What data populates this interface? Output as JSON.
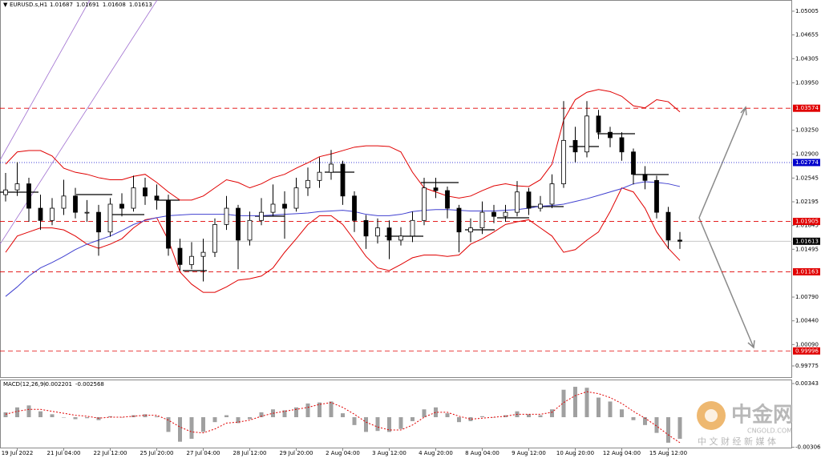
{
  "chart_data": [
    {
      "type": "candlestick",
      "symbol": "EURUSD.s,H1",
      "quote": [
        1.01687,
        1.01691,
        1.01608,
        1.01613
      ],
      "categories": [
        null,
        "19 Jul 2022",
        null,
        null,
        null,
        "21 Jul 04:00",
        null,
        null,
        null,
        "22 Jul 12:00",
        null,
        null,
        null,
        "25 Jul 20:00",
        null,
        null,
        null,
        "27 Jul 04:00",
        null,
        null,
        null,
        "28 Jul 12:00",
        null,
        null,
        null,
        "29 Jul 20:00",
        null,
        null,
        null,
        "2 Aug 04:00",
        null,
        null,
        null,
        "3 Aug 12:00",
        null,
        null,
        null,
        "4 Aug 20:00",
        null,
        null,
        null,
        "8 Aug 04:00",
        null,
        null,
        null,
        "9 Aug 12:00",
        null,
        null,
        null,
        "10 Aug 20:00",
        null,
        null,
        null,
        "12 Aug 04:00",
        null,
        null,
        null,
        "15 Aug 12:00",
        null
      ],
      "open": [
        1.023,
        1.0237,
        1.0246,
        1.021,
        1.0192,
        1.021,
        1.0228,
        1.0204,
        1.0204,
        1.0175,
        1.0216,
        1.021,
        1.024,
        1.0228,
        1.0222,
        1.0151,
        1.0127,
        1.0139,
        1.0145,
        1.0186,
        1.021,
        1.0163,
        1.0192,
        1.0204,
        1.0216,
        1.021,
        1.024,
        1.0251,
        1.0263,
        1.0275,
        1.0228,
        1.0192,
        1.0169,
        1.0181,
        1.0163,
        1.0169,
        1.0192,
        1.024,
        1.0236,
        1.021,
        1.0175,
        1.0181,
        1.0204,
        1.0198,
        1.0204,
        1.0234,
        1.021,
        1.0216,
        1.0246,
        1.031,
        1.0293,
        1.0346,
        1.0322,
        1.0314,
        1.0293,
        1.026,
        1.0251,
        1.0204,
        1.0163
      ],
      "high": [
        1.0262,
        1.0278,
        1.0255,
        1.023,
        1.0225,
        1.0252,
        1.024,
        1.0222,
        1.0215,
        1.0225,
        1.0232,
        1.0258,
        1.0255,
        1.0245,
        1.023,
        1.0165,
        1.016,
        1.0165,
        1.0195,
        1.0228,
        1.0215,
        1.0205,
        1.0225,
        1.0245,
        1.0235,
        1.0255,
        1.027,
        1.0285,
        1.0296,
        1.028,
        1.0235,
        1.02,
        1.0195,
        1.0192,
        1.0182,
        1.0205,
        1.0255,
        1.0255,
        1.0242,
        1.0215,
        1.0195,
        1.022,
        1.0215,
        1.0215,
        1.025,
        1.024,
        1.0228,
        1.026,
        1.0368,
        1.033,
        1.0368,
        1.0355,
        1.033,
        1.0322,
        1.0298,
        1.0272,
        1.0258,
        1.0212,
        1.0175
      ],
      "low": [
        1.022,
        1.0228,
        1.019,
        1.0178,
        1.0185,
        1.02,
        1.0195,
        1.019,
        1.014,
        1.0168,
        1.0198,
        1.0205,
        1.0215,
        1.0208,
        1.014,
        1.0118,
        1.012,
        1.0102,
        1.0138,
        1.0178,
        1.012,
        1.0155,
        1.0185,
        1.0198,
        1.0165,
        1.0205,
        1.0228,
        1.024,
        1.0252,
        1.0215,
        1.0175,
        1.015,
        1.0158,
        1.0135,
        1.0155,
        1.016,
        1.0185,
        1.0225,
        1.0195,
        1.0145,
        1.016,
        1.0172,
        1.0188,
        1.019,
        1.0198,
        1.02,
        1.0205,
        1.021,
        1.024,
        1.0278,
        1.0285,
        1.0312,
        1.03,
        1.028,
        1.0245,
        1.0238,
        1.0195,
        1.015,
        1.015
      ],
      "close": [
        1.0237,
        1.0246,
        1.021,
        1.0192,
        1.021,
        1.0228,
        1.0204,
        1.0204,
        1.0175,
        1.0216,
        1.021,
        1.024,
        1.0228,
        1.0222,
        1.0151,
        1.0127,
        1.0139,
        1.0145,
        1.0186,
        1.021,
        1.0163,
        1.0192,
        1.0204,
        1.0216,
        1.021,
        1.024,
        1.0251,
        1.0263,
        1.0275,
        1.0228,
        1.0192,
        1.0169,
        1.0181,
        1.0163,
        1.0169,
        1.0192,
        1.024,
        1.0236,
        1.021,
        1.0175,
        1.0181,
        1.0204,
        1.0198,
        1.0204,
        1.0234,
        1.021,
        1.0216,
        1.0246,
        1.031,
        1.0293,
        1.0346,
        1.0322,
        1.0314,
        1.0293,
        1.026,
        1.0251,
        1.0204,
        1.0163,
        1.01613
      ],
      "series": [
        {
          "color": "#e00000",
          "values": [
            1.0275,
            1.0293,
            1.0295,
            1.0295,
            1.0287,
            1.0269,
            1.0263,
            1.026,
            1.0255,
            1.0252,
            1.0252,
            1.0257,
            1.026,
            1.0248,
            1.0234,
            1.0222,
            1.0222,
            1.0228,
            1.024,
            1.0252,
            1.0248,
            1.024,
            1.0246,
            1.0255,
            1.026,
            1.0269,
            1.0277,
            1.0286,
            1.029,
            1.0295,
            1.03,
            1.0302,
            1.0302,
            1.0301,
            1.0293,
            1.0263,
            1.024,
            1.0234,
            1.0228,
            1.0225,
            1.0228,
            1.0236,
            1.0243,
            1.0246,
            1.0243,
            1.0242,
            1.0252,
            1.0275,
            1.034,
            1.037,
            1.0381,
            1.0385,
            1.0382,
            1.0375,
            1.0361,
            1.0358,
            1.037,
            1.0367,
            1.0352
          ]
        },
        {
          "color": "#e00000",
          "values": [
            1.0145,
            1.0169,
            1.0175,
            1.0181,
            1.0181,
            1.0178,
            1.0169,
            1.0157,
            1.0151,
            1.0157,
            1.0165,
            1.0181,
            1.0193,
            1.0196,
            1.0163,
            1.0116,
            1.0098,
            1.0086,
            1.0086,
            1.0094,
            1.0104,
            1.0106,
            1.011,
            1.0122,
            1.0145,
            1.0165,
            1.0186,
            1.0199,
            1.0199,
            1.0186,
            1.0163,
            1.0139,
            1.0122,
            1.0118,
            1.0127,
            1.0137,
            1.0141,
            1.0141,
            1.0139,
            1.0141,
            1.0157,
            1.0165,
            1.0175,
            1.0186,
            1.019,
            1.0193,
            1.0181,
            1.0169,
            1.0145,
            1.0149,
            1.0163,
            1.0175,
            1.0205,
            1.024,
            1.0234,
            1.021,
            1.0175,
            1.0151,
            1.0133
          ]
        },
        {
          "color": "#4040d0",
          "values": [
            1.008,
            1.0094,
            1.011,
            1.0122,
            1.013,
            1.0139,
            1.0149,
            1.0157,
            1.0163,
            1.0169,
            1.0177,
            1.0186,
            1.0192,
            1.0196,
            1.0199,
            1.02,
            1.0201,
            1.0201,
            1.0201,
            1.0201,
            1.0199,
            1.0199,
            1.0199,
            1.02,
            1.0201,
            1.0202,
            1.0203,
            1.0205,
            1.0206,
            1.0207,
            1.0205,
            1.0201,
            1.0199,
            1.0199,
            1.0201,
            1.0205,
            1.0207,
            1.0208,
            1.0208,
            1.0207,
            1.0206,
            1.0206,
            1.0206,
            1.0207,
            1.0208,
            1.021,
            1.0213,
            1.0214,
            1.0216,
            1.022,
            1.0224,
            1.0229,
            1.0234,
            1.0239,
            1.0246,
            1.0249,
            1.0248,
            1.0246,
            1.0242
          ]
        }
      ],
      "levels": [
        {
          "value": 1.03574,
          "color": "#e00000",
          "style": "dashed"
        },
        {
          "value": 1.02774,
          "color": "#0000cc",
          "style": "dotted"
        },
        {
          "value": 1.01905,
          "color": "#e00000",
          "style": "dashed"
        },
        {
          "value": 1.01613,
          "color": "#000000",
          "style": "solid"
        },
        {
          "value": 1.01163,
          "color": "#e00000",
          "style": "dashed"
        },
        {
          "value": 0.99996,
          "color": "#e00000",
          "style": "dashed"
        }
      ],
      "ylim": [
        0.99598,
        1.0517
      ],
      "yticks": [
        1.05005,
        1.04655,
        1.04305,
        {
          "value": 1.0395,
          "label": "1.03950"
        },
        {
          "value": 1.0325,
          "label": "1.03250"
        },
        {
          "value": 1.029,
          "label": "1.02900"
        },
        1.02545,
        1.02195,
        1.01845,
        1.01495,
        {
          "value": 1.0079,
          "label": "1.00790"
        },
        {
          "value": 1.0044,
          "label": "1.00440"
        },
        {
          "value": 1.0009,
          "label": "1.00090"
        },
        0.99775
      ]
    },
    {
      "type": "bar",
      "title": "MACD(12,26,9)",
      "readings": [
        -0.002201,
        -0.002568
      ],
      "series": [
        {
          "color": "#a0a0a0",
          "values": [
            0.0005,
            0.001,
            0.0012,
            0.0006,
            0.0003,
            0,
            -0.0002,
            -0.0001,
            -0.0003,
            0.0001,
            0,
            0.0002,
            0.0003,
            0.0001,
            -0.0015,
            -0.0025,
            -0.0022,
            -0.0015,
            -0.0005,
            0.0002,
            -0.0006,
            -0.0002,
            0.0005,
            0.0008,
            0.0007,
            0.001,
            0.0014,
            0.0015,
            0.0016,
            0.0004,
            -0.0008,
            -0.0015,
            -0.0014,
            -0.0015,
            -0.0012,
            -0.0004,
            0.0008,
            0.001,
            0.0004,
            -0.0005,
            -0.0004,
            0.0001,
            0,
            0.0002,
            0.0006,
            0.0003,
            0.0002,
            0.0008,
            0.0028,
            0.0031,
            0.003,
            0.002,
            0.0016,
            0.0008,
            -0.0003,
            -0.0008,
            -0.0016,
            -0.0026,
            -0.0022
          ]
        },
        {
          "color": "#e00000",
          "style": "dotted",
          "values": [
            0.0003,
            0.0006,
            0.0008,
            0.0008,
            0.0006,
            0.0004,
            0.0002,
            0.0001,
            -0.0001,
            0,
            0,
            0.0001,
            0.0002,
            0.0002,
            -0.0003,
            -0.001,
            -0.0015,
            -0.0016,
            -0.0012,
            -0.0006,
            -0.0005,
            -0.0003,
            0.0001,
            0.0004,
            0.0006,
            0.0008,
            0.001,
            0.0013,
            0.0015,
            0.001,
            0.0003,
            -0.0005,
            -0.001,
            -0.0013,
            -0.0013,
            -0.0008,
            0,
            0.0005,
            0.0005,
            0.0001,
            -0.0002,
            -0.0001,
            0,
            0.0001,
            0.0003,
            0.0003,
            0.0003,
            0.0005,
            0.0015,
            0.0022,
            0.0026,
            0.0024,
            0.002,
            0.0014,
            0.0006,
            -0.0001,
            -0.0009,
            -0.0018,
            -0.0026
          ]
        }
      ],
      "ylim": [
        -0.00318,
        0.00384
      ],
      "yticks": [
        0.00343,
        -0.003066
      ]
    }
  ],
  "watermark": {
    "brand": "中金网",
    "site": "CNGOLD.COM",
    "slogan": "中 文 财 经 新 媒 体"
  }
}
